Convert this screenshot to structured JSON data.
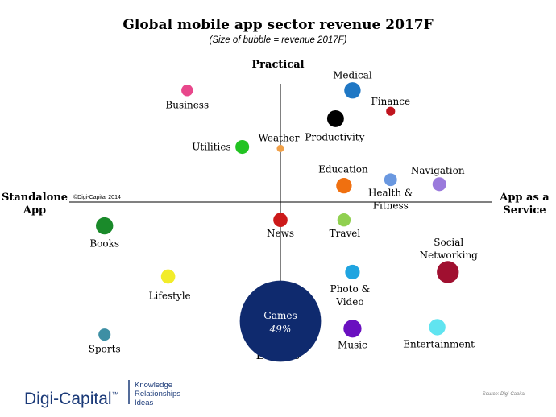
{
  "chart_data": {
    "type": "scatter",
    "title": "Global mobile app sector revenue 2017F",
    "subtitle": "(Size of bubble = revenue 2017F)",
    "axes": {
      "top": "Practical",
      "bottom": "Leisure",
      "left_line1": "Standalone",
      "left_line2": "App",
      "right_line1": "App as a",
      "right_line2": "Service"
    },
    "copyright": "©Digi-Capital 2014",
    "source": "Source: Digi-Capital",
    "x_range": [
      -10,
      10
    ],
    "y_range": [
      -10,
      10
    ],
    "points": [
      {
        "name": "business",
        "label": "Business",
        "x": -4.4,
        "y": 7.5,
        "size": 1.0,
        "color": "#e8478b"
      },
      {
        "name": "medical",
        "label": "Medical",
        "x": 3.4,
        "y": 7.5,
        "size": 2.0,
        "color": "#1f77c4"
      },
      {
        "name": "finance",
        "label": "Finance",
        "x": 5.2,
        "y": 6.1,
        "size": 0.6,
        "color": "#c0141e"
      },
      {
        "name": "productivity",
        "label": "Productivity",
        "x": 2.6,
        "y": 5.6,
        "size": 2.1,
        "color": "#000000"
      },
      {
        "name": "weather",
        "label": "Weather",
        "x": 0.0,
        "y": 3.6,
        "size": 0.4,
        "color": "#f0a048"
      },
      {
        "name": "utilities",
        "label": "Utilities",
        "x": -1.8,
        "y": 3.7,
        "size": 1.4,
        "color": "#22c322"
      },
      {
        "name": "education",
        "label": "Education",
        "x": 3.0,
        "y": 1.1,
        "size": 1.8,
        "color": "#f07010"
      },
      {
        "name": "health-fitness",
        "label": "Health &",
        "label2": "Fitness",
        "x": 5.2,
        "y": 1.5,
        "size": 1.2,
        "color": "#6a98e0"
      },
      {
        "name": "navigation",
        "label": "Navigation",
        "x": 7.5,
        "y": 1.2,
        "size": 1.4,
        "color": "#9a7adc"
      },
      {
        "name": "books",
        "label": "Books",
        "x": -8.3,
        "y": -1.6,
        "size": 2.2,
        "color": "#1a8a2a"
      },
      {
        "name": "news",
        "label": "News",
        "x": 0.0,
        "y": -1.2,
        "size": 1.5,
        "color": "#cc1a1a"
      },
      {
        "name": "travel",
        "label": "Travel",
        "x": 3.0,
        "y": -1.2,
        "size": 1.3,
        "color": "#90d050"
      },
      {
        "name": "social-networking",
        "label": "Social",
        "label2": "Networking",
        "x": 7.9,
        "y": -4.7,
        "size": 3.6,
        "color": "#a01030"
      },
      {
        "name": "lifestyle",
        "label": "Lifestyle",
        "x": -5.3,
        "y": -5.0,
        "size": 1.5,
        "color": "#f2ec2a"
      },
      {
        "name": "photo-video",
        "label": "Photo &",
        "label2": "Video",
        "x": 3.4,
        "y": -4.7,
        "size": 1.6,
        "color": "#20a4e0"
      },
      {
        "name": "games",
        "label": "Games",
        "value_label": "49%",
        "x": 0.0,
        "y": -8.0,
        "size": 49,
        "color": "#0f2a6e"
      },
      {
        "name": "music",
        "label": "Music",
        "x": 3.4,
        "y": -8.5,
        "size": 2.4,
        "color": "#6a10c0"
      },
      {
        "name": "entertainment",
        "label": "Entertainment",
        "x": 7.4,
        "y": -8.4,
        "size": 2.0,
        "color": "#60e4f0"
      },
      {
        "name": "sports",
        "label": "Sports",
        "x": -8.3,
        "y": -8.9,
        "size": 1.1,
        "color": "#3e8fa4"
      }
    ]
  },
  "brand": {
    "name": "Digi-Capital",
    "trademark": "™",
    "tagline": [
      "Knowledge",
      "Relationships",
      "Ideas"
    ]
  }
}
